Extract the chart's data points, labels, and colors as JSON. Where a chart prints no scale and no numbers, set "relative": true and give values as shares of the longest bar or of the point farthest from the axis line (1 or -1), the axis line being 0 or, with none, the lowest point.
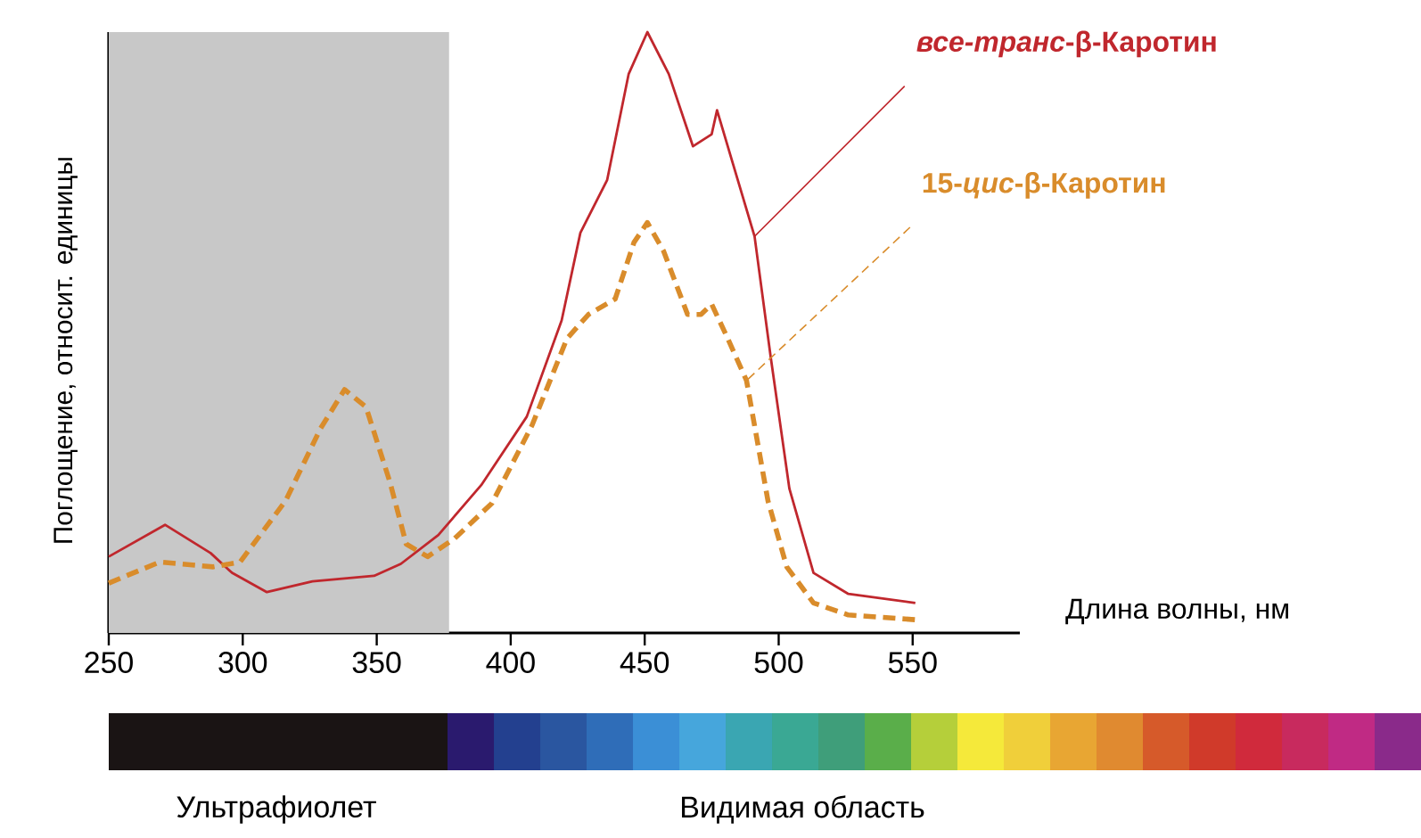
{
  "chart_data": {
    "type": "line",
    "relative": true,
    "xlabel": "Длина волны, нм",
    "ylabel": "Поглощение, относит. единицы",
    "xlim": [
      250,
      590
    ],
    "xticks": [
      250,
      300,
      350,
      400,
      450,
      500,
      550
    ],
    "tick_labels": "x",
    "grid": false,
    "legend": false,
    "bands": [
      {
        "axis": "x",
        "from": 250,
        "to": 377,
        "color": "#c8c8c8"
      }
    ],
    "annotations": [
      "Ультрафиолет",
      "Видимая область"
    ],
    "series": [
      {
        "name": "*все-транс*-β-Каротин",
        "color": "#c0272d",
        "line_style": "solid",
        "x": [
          250,
          271,
          288,
          296,
          309,
          326,
          349,
          359,
          373,
          389,
          406,
          419,
          426,
          436,
          444,
          451,
          459,
          468,
          475,
          477,
          483,
          491,
          497,
          504,
          513,
          526,
          551
        ],
        "values": [
          0.127,
          0.18,
          0.133,
          0.1,
          0.068,
          0.086,
          0.095,
          0.115,
          0.163,
          0.246,
          0.36,
          0.52,
          0.666,
          0.754,
          0.93,
          1.0,
          0.93,
          0.81,
          0.83,
          0.87,
          0.78,
          0.66,
          0.46,
          0.24,
          0.1,
          0.065,
          0.05
        ]
      },
      {
        "name": "15-*цис*-β-Каротин",
        "color": "#d98c2b",
        "line_style": "dashed",
        "x": [
          250,
          269,
          289,
          299,
          316,
          329,
          338,
          346,
          355,
          361,
          369,
          379,
          393,
          408,
          421,
          429,
          439,
          446,
          451,
          457,
          466,
          471,
          475,
          481,
          488,
          496,
          503,
          513,
          526,
          551
        ],
        "values": [
          0.083,
          0.118,
          0.11,
          0.118,
          0.22,
          0.34,
          0.405,
          0.376,
          0.25,
          0.148,
          0.127,
          0.157,
          0.216,
          0.346,
          0.49,
          0.53,
          0.556,
          0.65,
          0.683,
          0.636,
          0.53,
          0.53,
          0.547,
          0.49,
          0.42,
          0.22,
          0.11,
          0.05,
          0.03,
          0.022
        ]
      }
    ]
  }
}
